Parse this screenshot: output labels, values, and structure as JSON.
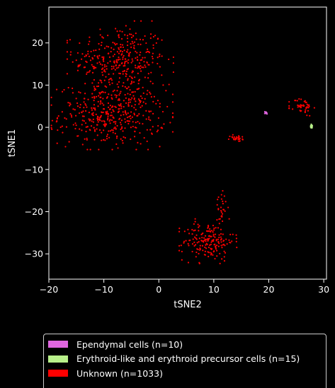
{
  "chart_data": {
    "type": "scatter",
    "title": "",
    "xlabel": "tSNE2",
    "ylabel": "tSNE1",
    "xlim": [
      -20,
      30.5
    ],
    "ylim": [
      -36,
      28.5
    ],
    "xticks": [
      -20,
      -10,
      0,
      10,
      20,
      30
    ],
    "yticks": [
      -30,
      -20,
      -10,
      0,
      10,
      20
    ],
    "grid": false,
    "legend_position": "bottom",
    "series": [
      {
        "name": "Ependymal cells (n=10)",
        "color": "#e066e0",
        "clusters": [
          {
            "cx": 19.4,
            "cy": 3.4,
            "sx": 0.25,
            "sy": 0.15,
            "n": 10
          }
        ]
      },
      {
        "name": "Erythroid-like and erythroid precursor cells (n=15)",
        "color": "#b8f08a",
        "clusters": [
          {
            "cx": 27.8,
            "cy": 0.2,
            "sx": 0.12,
            "sy": 0.25,
            "n": 15
          }
        ]
      },
      {
        "name": "Unknown (n=1033)",
        "color": "#ff0000",
        "clusters": [
          {
            "cx": -7.0,
            "cy": 16.0,
            "sx": 4.2,
            "sy": 4.0,
            "n": 330
          },
          {
            "cx": -8.5,
            "cy": 3.0,
            "sx": 4.8,
            "sy": 3.6,
            "n": 420
          },
          {
            "cx": 9.0,
            "cy": -27.0,
            "sx": 2.3,
            "sy": 2.3,
            "n": 185
          },
          {
            "cx": 11.5,
            "cy": -18.5,
            "sx": 0.5,
            "sy": 2.2,
            "n": 25
          },
          {
            "cx": 26.0,
            "cy": 4.8,
            "sx": 1.0,
            "sy": 1.1,
            "n": 45
          },
          {
            "cx": 14.3,
            "cy": -2.6,
            "sx": 0.7,
            "sy": 0.4,
            "n": 28
          }
        ]
      }
    ]
  }
}
